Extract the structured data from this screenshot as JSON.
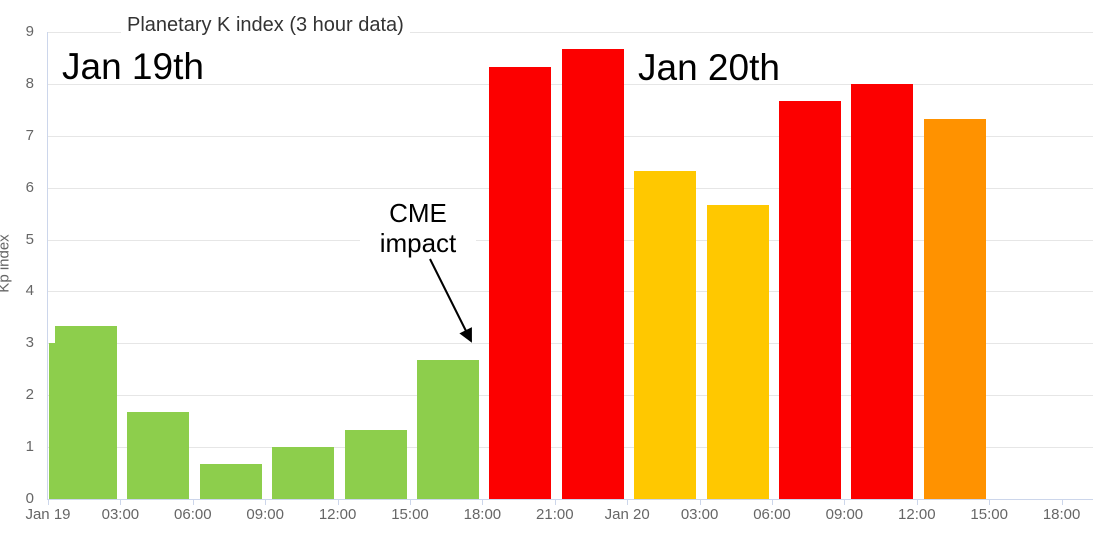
{
  "chart_data": {
    "type": "bar",
    "title": "Planetary K index (3 hour data)",
    "ylabel": "Kp index",
    "ylim": [
      0,
      9
    ],
    "yticks": [
      0,
      1,
      2,
      3,
      4,
      5,
      6,
      7,
      8,
      9
    ],
    "grid": true,
    "legend": false,
    "x_tick_labels": [
      "Jan 19",
      "03:00",
      "06:00",
      "09:00",
      "12:00",
      "15:00",
      "18:00",
      "21:00",
      "Jan 20",
      "03:00",
      "06:00",
      "09:00",
      "12:00",
      "15:00",
      "18:00"
    ],
    "bars": [
      {
        "time": "Jan 19 00:00",
        "value": 3.33,
        "color": "green"
      },
      {
        "time": "Jan 19 03:00",
        "value": 1.67,
        "color": "green"
      },
      {
        "time": "Jan 19 06:00",
        "value": 0.67,
        "color": "green"
      },
      {
        "time": "Jan 19 09:00",
        "value": 1.0,
        "color": "green"
      },
      {
        "time": "Jan 19 12:00",
        "value": 1.33,
        "color": "green"
      },
      {
        "time": "Jan 19 15:00",
        "value": 2.67,
        "color": "green"
      },
      {
        "time": "Jan 19 18:00",
        "value": 8.33,
        "color": "red"
      },
      {
        "time": "Jan 19 21:00",
        "value": 8.67,
        "color": "red"
      },
      {
        "time": "Jan 20 00:00",
        "value": 6.33,
        "color": "yellow"
      },
      {
        "time": "Jan 20 03:00",
        "value": 5.67,
        "color": "yellow"
      },
      {
        "time": "Jan 20 06:00",
        "value": 7.67,
        "color": "red"
      },
      {
        "time": "Jan 20 09:00",
        "value": 8.0,
        "color": "red"
      },
      {
        "time": "Jan 20 12:00",
        "value": 7.33,
        "color": "orange"
      }
    ],
    "clipped_left_bar": {
      "time": "Jan 18 21:00",
      "value": 3.0,
      "color": "green"
    },
    "palette": {
      "green": "#8DCE4C",
      "yellow": "#FFC800",
      "orange": "#FF9200",
      "red": "#FC0000"
    },
    "axis_color": "#CCD6EB",
    "grid_color": "#E6E6E6",
    "label_color": "#666666",
    "annotations": {
      "day_left": "Jan 19th",
      "day_right": "Jan 20th",
      "cme_line1": "CME",
      "cme_line2": "impact"
    }
  }
}
